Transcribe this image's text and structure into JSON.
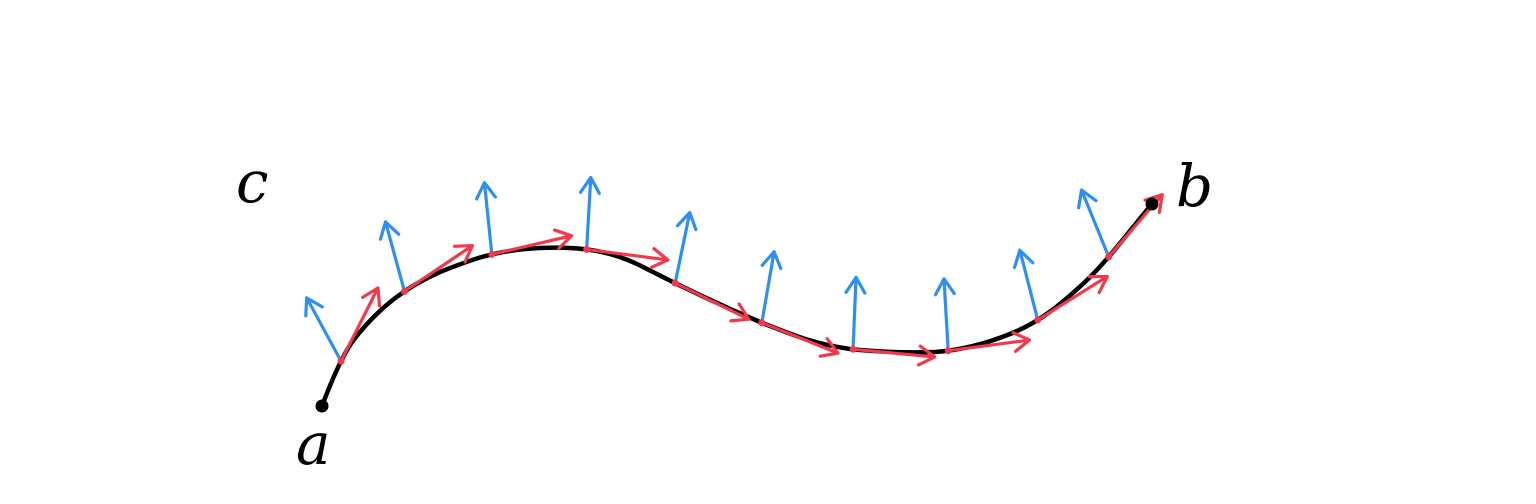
{
  "labels": {
    "start": "a",
    "end": "b",
    "curve": "c"
  },
  "colors": {
    "curve": "#000000",
    "tangent": "#f2384a",
    "normal": "#2f8ff0",
    "endpoint": "#000000"
  },
  "sample_point_count": 10
}
